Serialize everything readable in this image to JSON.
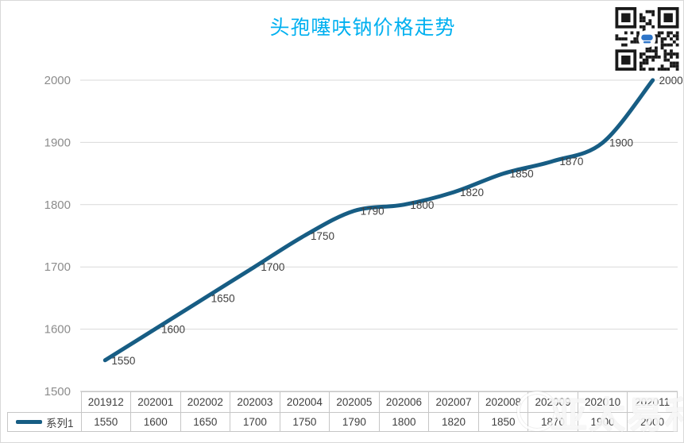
{
  "title": "头孢噻呋钠价格走势",
  "legend": {
    "label": "系列1"
  },
  "watermark": {
    "text": "亚太易和"
  },
  "colors": {
    "title": "#00B0F0",
    "line": "#175D84",
    "grid": "#d9d9d9",
    "axis": "#bfbfbf",
    "y_tick_label": "#8c8c8c",
    "data_label": "#3f3f3f",
    "table_border": "#c6c6c6",
    "table_text": "#3f3f3f"
  },
  "chart_data": {
    "type": "line",
    "title": "头孢噻呋钠价格走势",
    "categories": [
      "201912",
      "202001",
      "202002",
      "202003",
      "202004",
      "202005",
      "202006",
      "202007",
      "202008",
      "202009",
      "202010",
      "202011"
    ],
    "series": [
      {
        "name": "系列1",
        "values": [
          1550,
          1600,
          1650,
          1700,
          1750,
          1790,
          1800,
          1820,
          1850,
          1870,
          1900,
          2000
        ]
      }
    ],
    "xlabel": "",
    "ylabel": "",
    "ylim": [
      1500,
      2000
    ],
    "ytick_step": 100,
    "grid": true,
    "smooth": true,
    "data_labels": true,
    "legend_position": "bottom-table"
  }
}
